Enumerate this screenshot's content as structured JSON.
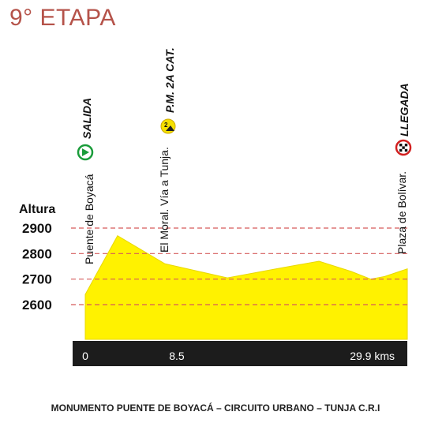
{
  "page": {
    "title": "9° ETAPA",
    "footer": "MONUMENTO PUENTE DE BOYACÁ – CIRCUITO URBANO – TUNJA C.R.I"
  },
  "chart_data": {
    "type": "area",
    "title": "9° ETAPA",
    "ylabel": "Altura",
    "xunit": "kms",
    "ylim": [
      2420,
      2930
    ],
    "xlim": [
      0,
      29.9
    ],
    "yticks": [
      2600,
      2700,
      2800,
      2900
    ],
    "grid": "dashed horizontal at y ticks",
    "fill_color": "#fff200",
    "grid_color": "#d55a5a",
    "profile": {
      "x": [
        0,
        3.0,
        7.4,
        13.2,
        17.7,
        21.7,
        24.7,
        26.5,
        27.8,
        29.9
      ],
      "y": [
        2640,
        2870,
        2760,
        2705,
        2740,
        2770,
        2730,
        2700,
        2710,
        2740
      ]
    },
    "axis_ticks": [
      {
        "x": 0,
        "label": "0"
      },
      {
        "x": 8.5,
        "label": "8.5"
      },
      {
        "x": 29.9,
        "label": "29.9 kms"
      }
    ],
    "places": [
      {
        "x": 0,
        "name": "Puente de Boyacá"
      },
      {
        "x": 8.5,
        "name": "El Moral. Vía a Tunja."
      },
      {
        "x": 29.9,
        "name": "Plaza de Bolívar."
      }
    ],
    "markers": [
      {
        "x": 0,
        "label": "SALIDA",
        "icon": "salida-start-icon",
        "color": "#1a9c3a"
      },
      {
        "x": 8.5,
        "label": "P.M. 2A CAT.",
        "icon": "mountain-category-2-icon",
        "badge": "2",
        "color": "#f5e000"
      },
      {
        "x": 29.9,
        "label": "LLEGADA",
        "icon": "checkered-finish-icon",
        "color": "#d22020"
      }
    ]
  }
}
